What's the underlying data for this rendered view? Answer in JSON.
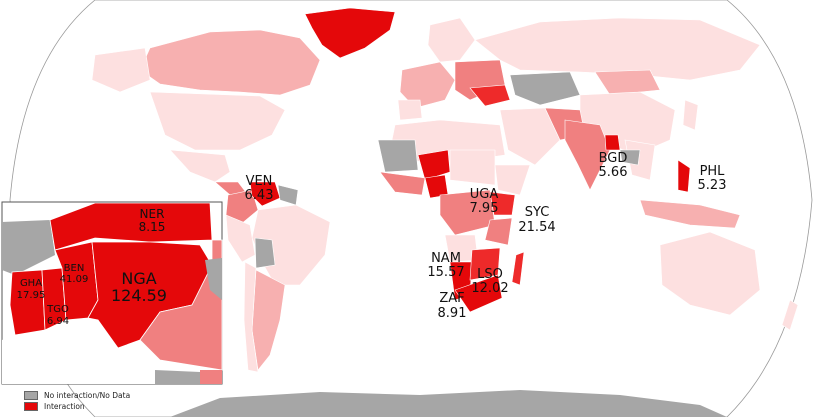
{
  "colors": {
    "ocean": "#ffffff",
    "no_data": "#a6a6a6",
    "interaction": "#e4080a",
    "high": "#ee2a2a",
    "medium": "#f08080",
    "low": "#f7b0b0",
    "very_low": "#fde0e0"
  },
  "legend": {
    "no_data_label": "No interaction/No Data",
    "interaction_label": "Interaction"
  },
  "labels": {
    "ven": {
      "code": "VEN",
      "value": "6.43"
    },
    "bgd": {
      "code": "BGD",
      "value": "5.66"
    },
    "phl": {
      "code": "PHL",
      "value": "5.23"
    },
    "uga": {
      "code": "UGA",
      "value": "7.95"
    },
    "syc": {
      "code": "SYC",
      "value": "21.54"
    },
    "nam": {
      "code": "NAM",
      "value": "15.57"
    },
    "lso": {
      "code": "LSO",
      "value": "12.02"
    },
    "zaf": {
      "code": "ZAF",
      "value": "8.91"
    }
  },
  "inset": {
    "ner": {
      "code": "NER",
      "value": "8.15"
    },
    "ben": {
      "code": "BEN",
      "value": "41.09"
    },
    "gha": {
      "code": "GHA",
      "value": "17.95"
    },
    "tgo": {
      "code": "TGO",
      "value": "6.94"
    },
    "nga": {
      "code": "NGA",
      "value": "124.59"
    }
  }
}
